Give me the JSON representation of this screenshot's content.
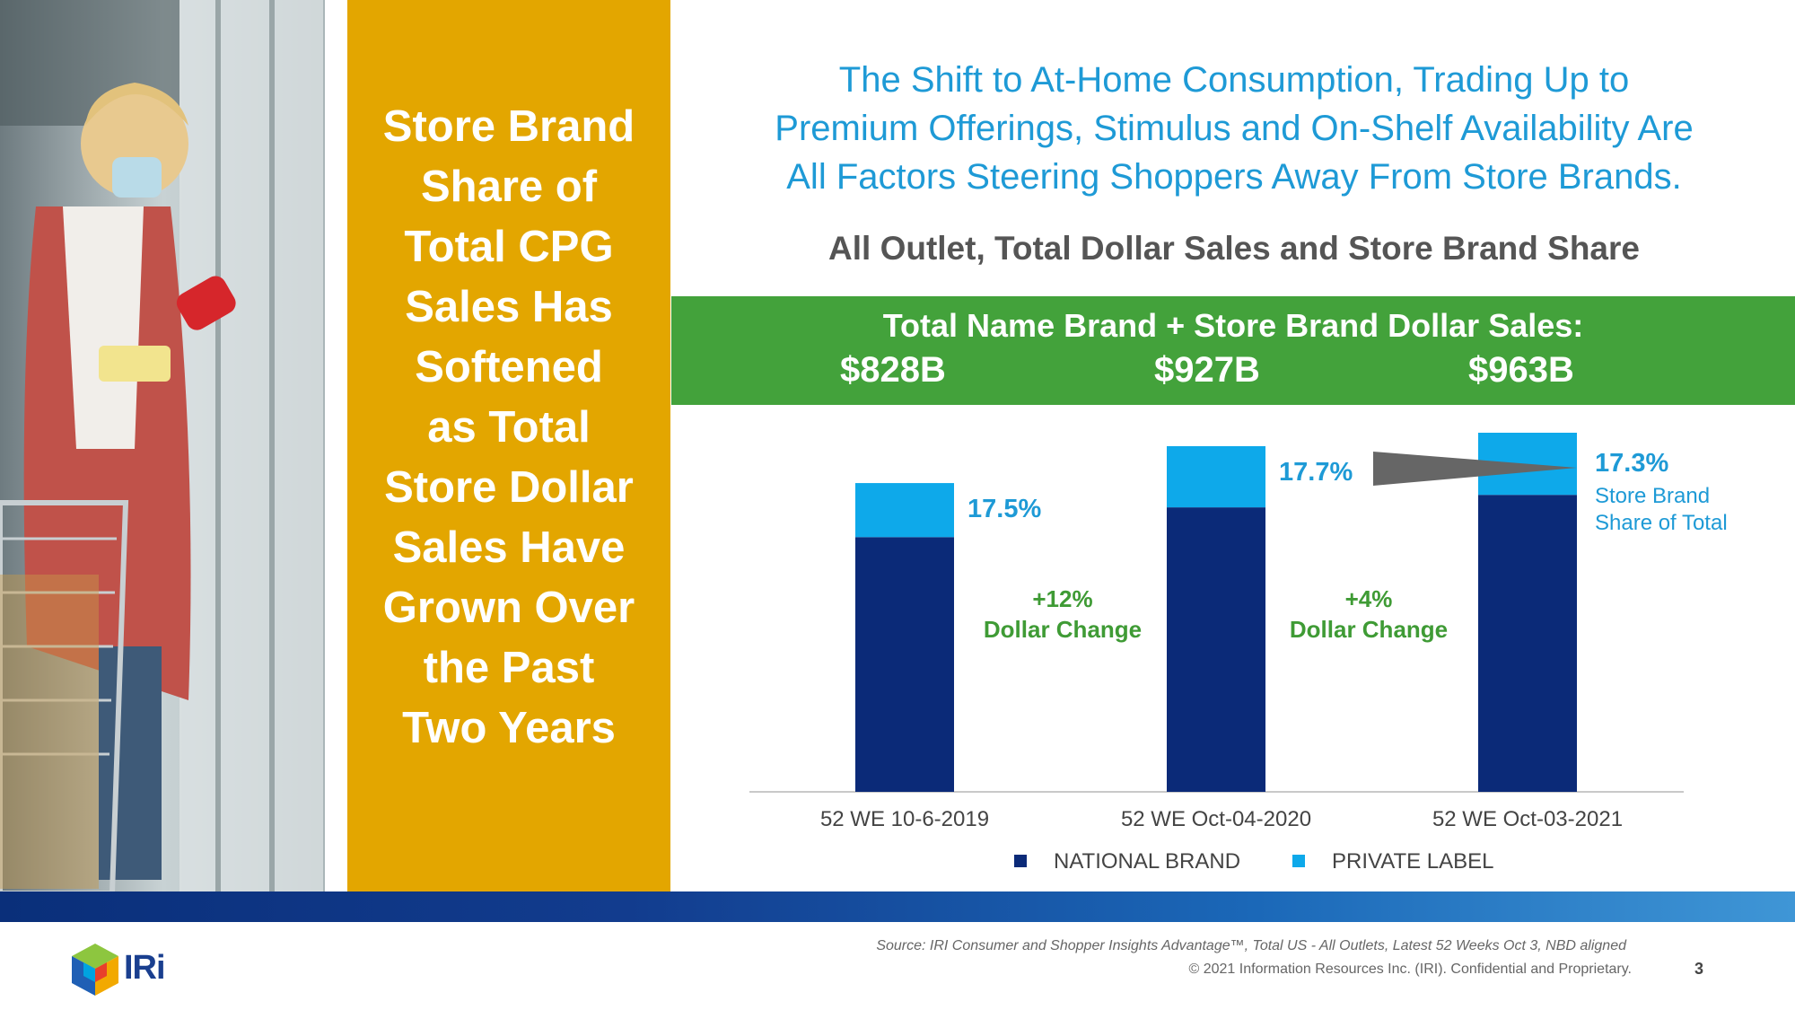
{
  "left_panel": {
    "lines": [
      "Store Brand",
      "Share of",
      "Total CPG",
      "Sales Has",
      "Softened",
      "as Total",
      "Store Dollar",
      "Sales Have",
      "Grown Over",
      "the Past",
      "Two Years"
    ]
  },
  "headline": {
    "line1": "The Shift to At-Home Consumption, Trading Up to",
    "line2": "Premium Offerings, Stimulus and On-Shelf Availability Are",
    "line3": "All Factors Steering Shoppers Away From Store Brands."
  },
  "subhead": "All Outlet, Total Dollar Sales and Store Brand Share",
  "totals_banner": {
    "title": "Total Name Brand + Store Brand Dollar Sales:",
    "values": [
      "$828B",
      "$927B",
      "$963B"
    ]
  },
  "chart_data": {
    "type": "bar",
    "stacked": true,
    "categories": [
      "52 WE 10-6-2019",
      "52 WE Oct-04-2020",
      "52 WE Oct-03-2021"
    ],
    "totals": [
      828,
      927,
      963
    ],
    "series": [
      {
        "name": "NATIONAL BRAND",
        "values": [
          683.1,
          762.9,
          796.4
        ],
        "color": "#0b2a78"
      },
      {
        "name": "PRIVATE LABEL",
        "values": [
          144.9,
          164.1,
          166.6
        ],
        "color": "#0ea9ea"
      }
    ],
    "share_labels": [
      "17.5%",
      "17.7%",
      "17.3%"
    ],
    "share_note": "Store Brand\nShare of Total",
    "changes": [
      {
        "pct": "+12%",
        "label": "Dollar Change"
      },
      {
        "pct": "+4%",
        "label": "Dollar Change"
      }
    ],
    "legend_position": "bottom",
    "grid": false
  },
  "footer": {
    "source": "Source: IRI Consumer and Shopper Insights Advantage™, Total US - All Outlets, Latest 52 Weeks Oct 3, NBD aligned",
    "copyright": "© 2021 Information Resources Inc. (IRI). Confidential and Proprietary.",
    "page_number": "3",
    "logo_text": "IRi"
  },
  "colors": {
    "gold": "#e3a600",
    "headline_blue": "#1e9ad6",
    "green": "#43a23b",
    "navy": "#0b2a78",
    "cyan": "#0ea9ea"
  }
}
